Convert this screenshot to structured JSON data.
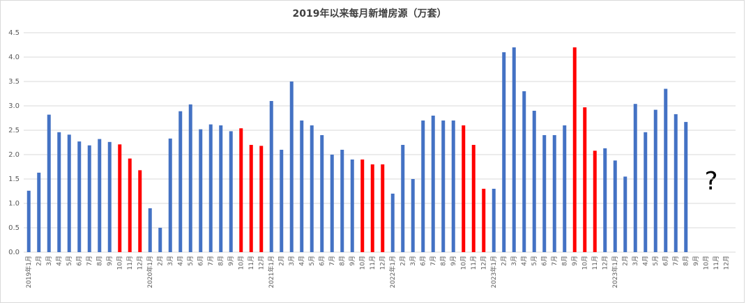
{
  "chart_data": {
    "type": "bar",
    "title": "2019年以来每月新增房源（万套）",
    "categories": [
      "2019年1月",
      "2月",
      "3月",
      "4月",
      "5月",
      "6月",
      "7月",
      "8月",
      "9月",
      "10月",
      "11月",
      "12月",
      "2020年1月",
      "2月",
      "3月",
      "4月",
      "5月",
      "6月",
      "7月",
      "8月",
      "9月",
      "10月",
      "11月",
      "12月",
      "2021年1月",
      "2月",
      "3月",
      "4月",
      "5月",
      "6月",
      "7月",
      "8月",
      "9月",
      "10月",
      "11月",
      "12月",
      "2022年1月",
      "2月",
      "3月",
      "6月",
      "7月",
      "8月",
      "9月",
      "10月",
      "11月",
      "12月",
      "2023年1月",
      "2月",
      "3月",
      "4月",
      "5月",
      "6月",
      "7月",
      "8月",
      "9月",
      "10月",
      "11月",
      "12月",
      "2023年1月",
      "2月",
      "3月",
      "4月",
      "5月",
      "6月",
      "7月",
      "8月",
      "9月",
      "10月",
      "11月",
      "12月"
    ],
    "values": [
      1.26,
      1.63,
      2.82,
      2.46,
      2.41,
      2.27,
      2.19,
      2.32,
      2.26,
      2.21,
      1.92,
      1.68,
      0.9,
      0.5,
      2.33,
      2.89,
      3.03,
      2.52,
      2.62,
      2.6,
      2.48,
      2.54,
      2.2,
      2.18,
      3.1,
      2.1,
      3.5,
      2.7,
      2.6,
      2.4,
      2.0,
      2.1,
      1.9,
      1.9,
      1.8,
      1.8,
      1.2,
      2.2,
      1.5,
      2.7,
      2.8,
      2.7,
      2.7,
      2.6,
      2.2,
      1.3,
      1.3,
      4.1,
      4.2,
      3.3,
      2.9,
      2.4,
      2.4,
      2.6,
      4.2,
      2.97,
      2.08,
      2.13,
      1.88,
      1.55,
      3.04,
      2.46,
      2.92,
      3.35,
      2.83,
      2.67,
      null,
      null,
      null,
      null
    ],
    "colors": [
      "#4472c4",
      "#4472c4",
      "#4472c4",
      "#4472c4",
      "#4472c4",
      "#4472c4",
      "#4472c4",
      "#4472c4",
      "#4472c4",
      "#ff0000",
      "#ff0000",
      "#ff0000",
      "#4472c4",
      "#4472c4",
      "#4472c4",
      "#4472c4",
      "#4472c4",
      "#4472c4",
      "#4472c4",
      "#4472c4",
      "#4472c4",
      "#ff0000",
      "#ff0000",
      "#ff0000",
      "#4472c4",
      "#4472c4",
      "#4472c4",
      "#4472c4",
      "#4472c4",
      "#4472c4",
      "#4472c4",
      "#4472c4",
      "#4472c4",
      "#ff0000",
      "#ff0000",
      "#ff0000",
      "#4472c4",
      "#4472c4",
      "#4472c4",
      "#4472c4",
      "#4472c4",
      "#4472c4",
      "#4472c4",
      "#ff0000",
      "#ff0000",
      "#ff0000",
      "#4472c4",
      "#4472c4",
      "#4472c4",
      "#4472c4",
      "#4472c4",
      "#4472c4",
      "#4472c4",
      "#4472c4",
      "#ff0000",
      "#ff0000",
      "#ff0000",
      "#4472c4",
      "#4472c4",
      "#4472c4",
      "#4472c4",
      "#4472c4",
      "#4472c4",
      "#4472c4",
      "#4472c4",
      "#4472c4",
      null,
      null,
      null,
      null
    ],
    "ylim": [
      0,
      4.5
    ],
    "yticks": [
      {
        "value": 0,
        "label": "0.0"
      },
      {
        "value": 0.5,
        "label": "0.5"
      },
      {
        "value": 1,
        "label": "1.0"
      },
      {
        "value": 1.5,
        "label": "1.5"
      },
      {
        "value": 2,
        "label": "2.0"
      },
      {
        "value": 2.5,
        "label": "2.5"
      },
      {
        "value": 3,
        "label": "3.0"
      },
      {
        "value": 3.5,
        "label": "3.5"
      },
      {
        "value": 4,
        "label": "4.0"
      },
      {
        "value": 4.5,
        "label": "4.5"
      }
    ],
    "grid": true,
    "annotation": "?"
  }
}
